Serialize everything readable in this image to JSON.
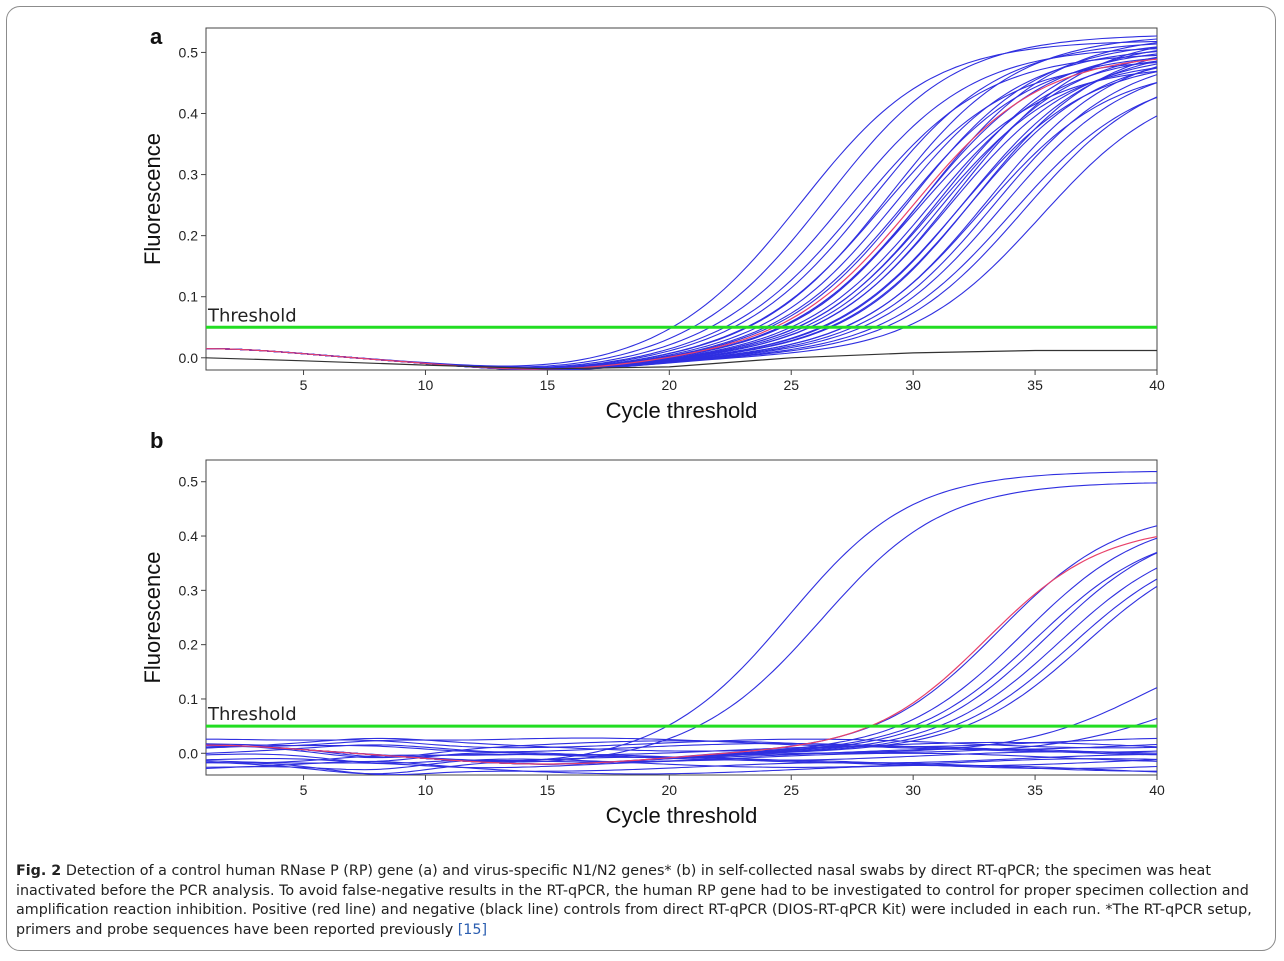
{
  "colors": {
    "sample_line": "#2f2fe0",
    "positive_control": "#e8416a",
    "negative_control": "#333333",
    "threshold_line": "#22dd22"
  },
  "chart_data": [
    {
      "type": "line",
      "panel_label": "a",
      "xlabel": "Cycle threshold",
      "ylabel": "Fluorescence",
      "xlim": [
        1,
        40
      ],
      "ylim": [
        -0.02,
        0.54
      ],
      "xticks": [
        5,
        10,
        15,
        20,
        25,
        30,
        35,
        40
      ],
      "yticks": [
        0.0,
        0.1,
        0.2,
        0.3,
        0.4,
        0.5
      ],
      "threshold": {
        "label": "Threshold",
        "value": 0.05
      },
      "sample_curves_ct": [
        21.5,
        22.5,
        23.2,
        23.8,
        24.3,
        24.7,
        25.0,
        25.3,
        25.6,
        25.9,
        26.1,
        26.3,
        26.5,
        26.7,
        26.9,
        27.1,
        27.3,
        27.5,
        27.7,
        27.9,
        28.1,
        28.3,
        28.5,
        28.8,
        29.0,
        29.3,
        29.6,
        30.0,
        30.5,
        31.2
      ],
      "sample_curves_plateau": [
        0.52,
        0.53,
        0.51,
        0.5,
        0.52,
        0.49,
        0.53,
        0.51,
        0.5,
        0.52,
        0.48,
        0.51,
        0.53,
        0.5,
        0.49,
        0.52,
        0.51,
        0.5,
        0.53,
        0.49,
        0.51,
        0.5,
        0.52,
        0.48,
        0.51,
        0.5,
        0.49,
        0.47,
        0.48,
        0.46
      ],
      "positive_control_ct": 26.0,
      "negative_control": {
        "x": [
          1,
          5,
          10,
          15,
          20,
          25,
          30,
          35,
          40
        ],
        "y": [
          0.0,
          -0.005,
          -0.012,
          -0.018,
          -0.015,
          0.0,
          0.008,
          0.012,
          0.012
        ]
      }
    },
    {
      "type": "line",
      "panel_label": "b",
      "xlabel": "Cycle threshold",
      "ylabel": "Fluorescence",
      "xlim": [
        1,
        40
      ],
      "ylim": [
        -0.04,
        0.54
      ],
      "xticks": [
        5,
        10,
        15,
        20,
        25,
        30,
        35,
        40
      ],
      "yticks": [
        0.0,
        0.1,
        0.2,
        0.3,
        0.4,
        0.5
      ],
      "threshold": {
        "label": "Threshold",
        "value": 0.05
      },
      "sample_curves_ct": [
        21.0,
        22.3,
        29.5,
        30.5,
        31.0,
        31.5,
        32.0,
        32.5,
        33.0,
        35.5,
        37.0
      ],
      "sample_curves_plateau": [
        0.52,
        0.5,
        0.45,
        0.44,
        0.42,
        0.43,
        0.41,
        0.4,
        0.4,
        0.22,
        0.16
      ],
      "positive_control_ct": 29.0,
      "flat_curves_y": [
        -0.03,
        -0.025,
        -0.02,
        -0.015,
        -0.01,
        -0.005,
        0.0,
        0.005,
        0.01,
        0.015,
        0.02,
        -0.018,
        0.012,
        -0.008,
        0.018
      ]
    }
  ],
  "caption": {
    "lead": "Fig. 2",
    "text": "Detection of a control human RNase P (RP) gene (a) and virus-specific N1/N2 genes* (b) in self-collected nasal swabs by direct RT-qPCR; the specimen was heat inactivated before the PCR analysis. To avoid false-negative results in the RT-qPCR, the human RP gene had to be investigated to control for proper specimen collection and amplification reaction inhibition. Positive (red line) and negative (black line) controls from direct RT-qPCR (DIOS-RT-qPCR Kit) were included in each run. *The RT-qPCR setup, primers and probe sequences have been reported previously",
    "ref": "[15]"
  }
}
